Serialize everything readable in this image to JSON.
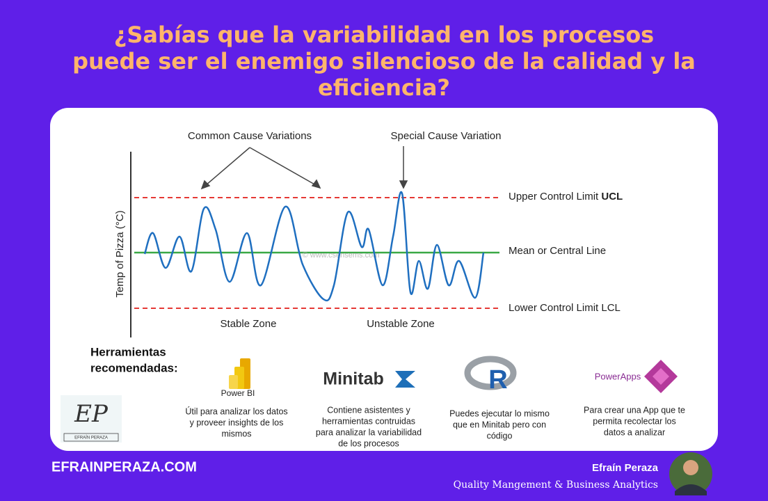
{
  "header": {
    "title_lines": [
      "¿Sabías que la variabilidad en los procesos",
      "puede ser el enemigo silencioso de la calidad y la",
      "eficiencia?"
    ]
  },
  "diagram": {
    "common_cause": "Common Cause Variations",
    "special_cause": "Special Cause Variation",
    "ucl_label": "Upper Control Limit",
    "ucl_abbr": "UCL",
    "mean_label": "Mean or Central Line",
    "lcl_label": "Lower Control Limit LCL",
    "stable_zone": "Stable Zone",
    "unstable_zone": "Unstable Zone",
    "y_axis_label": "Temp of Pizza (°C)",
    "watermark": "© www.csensems.com"
  },
  "tools": {
    "heading_lines": [
      "Herramientas",
      "recomendadas:"
    ],
    "items": [
      {
        "logo": "Power BI",
        "description_lines": [
          "Útil para analizar los datos",
          "y proveer insights de los",
          "mismos"
        ]
      },
      {
        "logo": "Minitab",
        "description_lines": [
          "Contiene asistentes y",
          "herramientas contruidas",
          "para analizar la variabilidad",
          "de los procesos"
        ]
      },
      {
        "logo": "R",
        "description_lines": [
          "Puedes ejecutar lo mismo",
          "que en Minitab pero con",
          "código"
        ]
      },
      {
        "logo": "PowerApps",
        "description_lines": [
          "Para crear una App que te",
          "permita recolectar los",
          "datos a analizar"
        ]
      }
    ]
  },
  "brand": {
    "monogram": "EP",
    "name_plate": "EFRAÍN PERAZA"
  },
  "footer": {
    "site": "EFRAINPERAZA.COM",
    "author": "Efraín Peraza",
    "role": "Quality Mangement & Business Analytics"
  }
}
